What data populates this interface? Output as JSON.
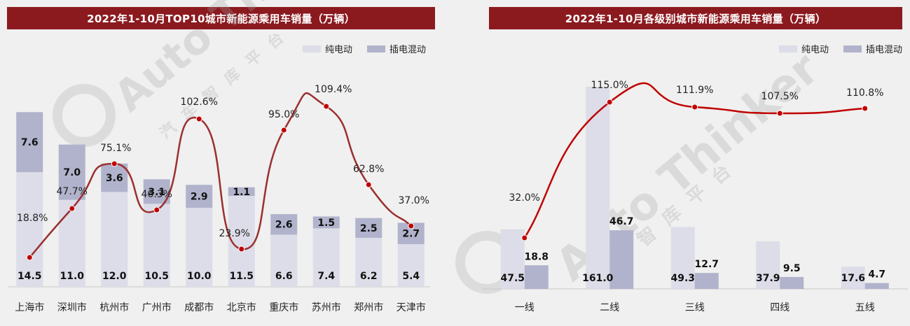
{
  "left_chart_title": "2022年1-10月TOP10城市新能源乘用车销量（万辆）",
  "right_chart_title": "2022年1-10月各级别城市新能源乘用车销量（万辆）",
  "watermark_text": "Auto Thinker",
  "watermark_text_2": "汽车智库平台",
  "colors": {
    "bev": "#dcdde8",
    "phev": "#b1b3cc",
    "line_left": "#9b2f2f",
    "line_right": "#c00000",
    "point": "#c00000",
    "title_bg": "#8b1a1f"
  },
  "chart_data": [
    {
      "type": "bar",
      "stacked": true,
      "title": "2022年1-10月TOP10城市新能源乘用车销量（万辆）",
      "categories": [
        "上海市",
        "深圳市",
        "杭州市",
        "广州市",
        "成都市",
        "北京市",
        "重庆市",
        "苏州市",
        "郑州市",
        "天津市"
      ],
      "series": [
        {
          "name": "纯电动",
          "values": [
            14.5,
            11.0,
            12.0,
            10.5,
            10.0,
            11.5,
            6.6,
            7.4,
            6.2,
            5.4
          ]
        },
        {
          "name": "插电混动",
          "values": [
            7.6,
            7.0,
            3.6,
            3.1,
            2.9,
            1.1,
            2.6,
            1.5,
            2.5,
            2.7
          ]
        }
      ],
      "growth_line": [
        "18.8%",
        "47.7%",
        "75.1%",
        "46.3%",
        "102.6%",
        "23.9%",
        "95.0%",
        "109.4%",
        "62.8%",
        "37.0%"
      ],
      "legend": "top-right"
    },
    {
      "type": "bar",
      "stacked": false,
      "title": "2022年1-10月各级别城市新能源乘用车销量（万辆）",
      "categories": [
        "一线",
        "二线",
        "三线",
        "四线",
        "五线"
      ],
      "series": [
        {
          "name": "纯电动",
          "values": [
            47.5,
            161.0,
            49.3,
            37.9,
            17.6
          ]
        },
        {
          "name": "插电混动",
          "values": [
            18.8,
            46.7,
            12.7,
            9.5,
            4.7
          ]
        }
      ],
      "growth_line": [
        "32.0%",
        "115.0%",
        "111.9%",
        "107.5%",
        "110.8%"
      ],
      "legend": "top-right"
    }
  ]
}
